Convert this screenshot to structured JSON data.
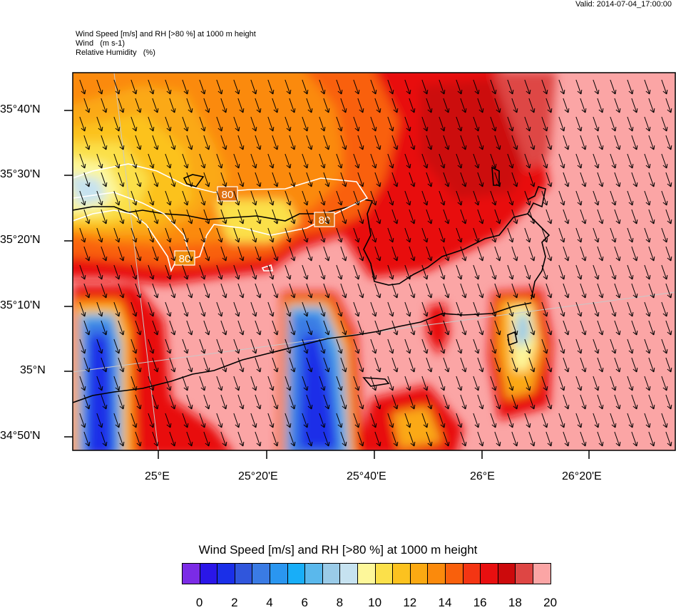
{
  "valid": "Valid: 2014-07-04_17:00:00",
  "title_lines": [
    "Wind Speed [m/s] and RH [>80 %] at 1000 m height",
    "Wind   (m s-1)",
    "Relative Humidity   (%)"
  ],
  "y_ticks": [
    "35°40'N",
    "35°30'N",
    "35°20'N",
    "35°10'N",
    "35°N",
    "34°50'N"
  ],
  "x_ticks": [
    "25°E",
    "25°20'E",
    "25°40'E",
    "26°E",
    "26°20'E"
  ],
  "rh_contour_label": "80",
  "colorbar": {
    "title": "Wind Speed [m/s] and RH [>80 %] at 1000 m height",
    "labels": [
      "0",
      "2",
      "4",
      "6",
      "8",
      "10",
      "12",
      "14",
      "16",
      "18",
      "20"
    ],
    "colors": [
      "#7b2be6",
      "#2a16e8",
      "#1a2fe8",
      "#3056dc",
      "#3a7be4",
      "#2a96f0",
      "#18aef8",
      "#5ab8ec",
      "#9acbe8",
      "#c6e2f0",
      "#fdf79a",
      "#fbe04a",
      "#fcc21f",
      "#fba912",
      "#fb8a0c",
      "#f9600c",
      "#f43513",
      "#e80f10",
      "#cc0a0c",
      "#de4644",
      "#fba5a5"
    ]
  },
  "colors": {
    "background_max": "#fba5a5",
    "contour": "#ffffff",
    "coast": "#000000",
    "arrow": "#000000"
  }
}
